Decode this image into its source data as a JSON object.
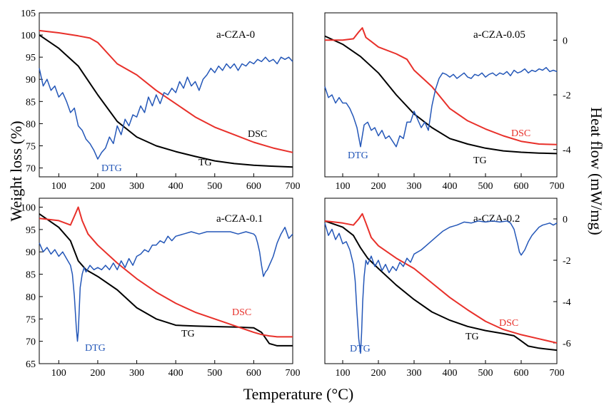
{
  "figure": {
    "xlabel": "Temperature (°C)",
    "ylabel_left": "Weight loss (%)",
    "ylabel_right": "Heat flow (mW/mg)"
  },
  "chart_data": [
    {
      "type": "line",
      "title": "a-CZA-0",
      "xlim": [
        50,
        700
      ],
      "ylim_left": [
        68,
        105
      ],
      "ylim_right": [
        -5,
        1
      ],
      "xticks": [
        100,
        200,
        300,
        400,
        500,
        600,
        700
      ],
      "yticks_left": [
        70,
        75,
        80,
        85,
        90,
        95,
        100,
        105
      ],
      "yticks_right": [],
      "series": [
        {
          "name": "TG",
          "color": "#000000",
          "x": [
            50,
            100,
            150,
            200,
            250,
            300,
            350,
            400,
            450,
            500,
            550,
            600,
            650,
            700
          ],
          "y": [
            100.0,
            97.0,
            93.0,
            86.5,
            80.5,
            77.0,
            75.0,
            73.7,
            72.6,
            71.6,
            71.0,
            70.6,
            70.4,
            70.2
          ]
        },
        {
          "name": "DSC",
          "color": "#e8302a",
          "x": [
            50,
            100,
            150,
            180,
            200,
            250,
            300,
            350,
            400,
            450,
            500,
            550,
            600,
            650,
            700
          ],
          "y": [
            101.0,
            100.5,
            99.8,
            99.3,
            98.3,
            93.5,
            91.0,
            87.5,
            84.5,
            81.5,
            79.2,
            77.5,
            75.8,
            74.5,
            73.5
          ]
        },
        {
          "name": "DTG",
          "color": "#2457b8",
          "x": [
            50,
            60,
            70,
            80,
            90,
            100,
            110,
            120,
            130,
            140,
            150,
            160,
            170,
            180,
            190,
            200,
            210,
            220,
            230,
            240,
            250,
            260,
            270,
            280,
            290,
            300,
            310,
            320,
            330,
            340,
            350,
            360,
            370,
            380,
            390,
            400,
            410,
            420,
            430,
            440,
            450,
            460,
            470,
            480,
            490,
            500,
            510,
            520,
            530,
            540,
            550,
            560,
            570,
            580,
            590,
            600,
            610,
            620,
            630,
            640,
            650,
            660,
            670,
            680,
            690,
            700
          ],
          "y": [
            92.5,
            88.5,
            90.0,
            87.5,
            88.5,
            86.0,
            87.0,
            85.0,
            82.5,
            83.5,
            79.5,
            78.5,
            76.5,
            75.5,
            74.0,
            72.0,
            73.5,
            74.5,
            77.0,
            75.5,
            79.5,
            77.5,
            81.0,
            79.5,
            82.0,
            81.5,
            84.0,
            82.5,
            86.0,
            84.0,
            86.5,
            84.5,
            87.0,
            86.5,
            88.0,
            87.0,
            89.5,
            88.0,
            90.5,
            88.5,
            89.5,
            87.5,
            90.0,
            91.0,
            92.5,
            91.5,
            93.0,
            92.0,
            93.5,
            92.5,
            93.5,
            92.0,
            93.5,
            93.0,
            94.0,
            93.5,
            94.5,
            94.0,
            95.0,
            94.0,
            94.5,
            93.5,
            95.0,
            94.5,
            95.0,
            94.0
          ]
        }
      ],
      "labels": {
        "tg": "TG",
        "dsc": "DSC",
        "dtg": "DTG"
      }
    },
    {
      "type": "line",
      "title": "a-CZA-0.05",
      "xlim": [
        50,
        700
      ],
      "ylim_left": [
        68,
        105
      ],
      "ylim_right": [
        -5,
        1
      ],
      "xticks": [
        100,
        200,
        300,
        400,
        500,
        600,
        700
      ],
      "yticks_left": [],
      "yticks_right": [
        0,
        -2,
        -4
      ],
      "series": [
        {
          "name": "TG",
          "color": "#000000",
          "x": [
            50,
            100,
            150,
            200,
            250,
            300,
            350,
            400,
            450,
            500,
            550,
            600,
            650,
            700
          ],
          "y": [
            0.15,
            -0.15,
            -0.6,
            -1.2,
            -2.0,
            -2.7,
            -3.2,
            -3.6,
            -3.8,
            -3.95,
            -4.05,
            -4.1,
            -4.13,
            -4.15
          ]
        },
        {
          "name": "DSC",
          "color": "#e8302a",
          "x": [
            50,
            100,
            130,
            145,
            155,
            165,
            180,
            200,
            250,
            280,
            300,
            350,
            400,
            450,
            500,
            550,
            600,
            650,
            700
          ],
          "y": [
            0.0,
            0.0,
            0.05,
            0.3,
            0.45,
            0.1,
            -0.05,
            -0.25,
            -0.5,
            -0.7,
            -1.1,
            -1.7,
            -2.5,
            -2.95,
            -3.25,
            -3.5,
            -3.7,
            -3.8,
            -3.82
          ]
        },
        {
          "name": "DTG",
          "color": "#2457b8",
          "x": [
            50,
            60,
            70,
            80,
            90,
            100,
            110,
            120,
            130,
            140,
            150,
            160,
            170,
            180,
            190,
            200,
            210,
            220,
            230,
            240,
            250,
            260,
            270,
            280,
            290,
            300,
            310,
            320,
            330,
            340,
            350,
            360,
            370,
            380,
            390,
            400,
            410,
            420,
            430,
            440,
            450,
            460,
            470,
            480,
            490,
            500,
            510,
            520,
            530,
            540,
            550,
            560,
            570,
            580,
            590,
            600,
            610,
            620,
            630,
            640,
            650,
            660,
            670,
            680,
            690,
            700
          ],
          "y": [
            -1.7,
            -2.1,
            -2.0,
            -2.3,
            -2.1,
            -2.3,
            -2.3,
            -2.5,
            -2.8,
            -3.2,
            -3.9,
            -3.1,
            -3.0,
            -3.3,
            -3.2,
            -3.5,
            -3.3,
            -3.6,
            -3.5,
            -3.7,
            -3.9,
            -3.5,
            -3.6,
            -3.0,
            -3.0,
            -2.6,
            -2.9,
            -3.2,
            -3.0,
            -3.3,
            -2.4,
            -1.8,
            -1.4,
            -1.2,
            -1.25,
            -1.35,
            -1.25,
            -1.4,
            -1.3,
            -1.2,
            -1.35,
            -1.4,
            -1.25,
            -1.3,
            -1.2,
            -1.35,
            -1.25,
            -1.2,
            -1.3,
            -1.2,
            -1.25,
            -1.15,
            -1.3,
            -1.1,
            -1.2,
            -1.15,
            -1.05,
            -1.2,
            -1.1,
            -1.15,
            -1.05,
            -1.1,
            -1.0,
            -1.15,
            -1.1,
            -1.15
          ]
        }
      ],
      "labels": {
        "tg": "TG",
        "dsc": "DSC",
        "dtg": "DTG"
      }
    },
    {
      "type": "line",
      "title": "a-CZA-0.1",
      "xlim": [
        50,
        700
      ],
      "ylim_left": [
        65,
        102
      ],
      "ylim_right": [
        -7,
        1
      ],
      "xticks": [
        100,
        200,
        300,
        400,
        500,
        600,
        700
      ],
      "yticks_left": [
        65,
        70,
        75,
        80,
        85,
        90,
        95,
        100
      ],
      "yticks_right": [],
      "series": [
        {
          "name": "TG",
          "color": "#000000",
          "x": [
            50,
            100,
            130,
            150,
            170,
            200,
            250,
            300,
            350,
            400,
            450,
            500,
            550,
            600,
            620,
            640,
            660,
            700
          ],
          "y": [
            98.5,
            95.5,
            92.5,
            88.0,
            86.0,
            84.5,
            81.5,
            77.5,
            75.0,
            73.6,
            73.4,
            73.3,
            73.2,
            73.0,
            72.0,
            69.5,
            69.0,
            69.0
          ]
        },
        {
          "name": "DSC",
          "color": "#e8302a",
          "x": [
            50,
            100,
            130,
            140,
            150,
            160,
            175,
            200,
            250,
            300,
            350,
            400,
            450,
            500,
            550,
            600,
            620,
            640,
            660,
            700
          ],
          "y": [
            97.5,
            97.0,
            96.0,
            98.0,
            100.0,
            97.0,
            94.0,
            91.5,
            87.5,
            84.0,
            81.0,
            78.5,
            76.5,
            75.0,
            73.5,
            72.0,
            71.5,
            71.2,
            71.0,
            71.0
          ]
        },
        {
          "name": "DTG",
          "color": "#2457b8",
          "x": [
            50,
            60,
            70,
            80,
            90,
            100,
            110,
            120,
            130,
            135,
            140,
            145,
            148,
            150,
            152,
            155,
            160,
            165,
            170,
            180,
            190,
            200,
            210,
            220,
            230,
            240,
            250,
            260,
            270,
            280,
            290,
            300,
            310,
            320,
            330,
            340,
            350,
            360,
            370,
            380,
            390,
            400,
            420,
            440,
            460,
            480,
            500,
            520,
            540,
            560,
            580,
            600,
            605,
            610,
            615,
            620,
            625,
            630,
            635,
            640,
            645,
            650,
            660,
            670,
            680,
            690,
            700
          ],
          "y": [
            92.0,
            90.0,
            91.0,
            89.5,
            90.5,
            89.0,
            90.0,
            88.5,
            87.0,
            85.0,
            80.0,
            73.0,
            70.0,
            72.0,
            76.0,
            82.0,
            85.0,
            86.5,
            85.5,
            87.0,
            86.0,
            86.5,
            86.0,
            87.0,
            86.0,
            87.5,
            86.0,
            88.0,
            86.5,
            88.5,
            87.0,
            89.0,
            89.5,
            90.5,
            90.0,
            91.5,
            91.5,
            92.5,
            92.0,
            93.5,
            92.5,
            93.5,
            94.0,
            94.5,
            94.0,
            94.5,
            94.5,
            94.5,
            94.5,
            94.0,
            94.5,
            94.0,
            93.5,
            92.0,
            90.0,
            87.0,
            84.5,
            85.5,
            86.0,
            87.0,
            88.0,
            89.0,
            92.0,
            94.0,
            95.5,
            93.0,
            94.0
          ]
        }
      ],
      "labels": {
        "tg": "TG",
        "dsc": "DSC",
        "dtg": "DTG"
      }
    },
    {
      "type": "line",
      "title": "a-CZA-0.2",
      "xlim": [
        50,
        700
      ],
      "ylim_left": [
        65,
        102
      ],
      "ylim_right": [
        -7,
        1
      ],
      "xticks": [
        100,
        200,
        300,
        400,
        500,
        600,
        700
      ],
      "yticks_left": [],
      "yticks_right": [
        0,
        -2,
        -4,
        -6
      ],
      "series": [
        {
          "name": "TG",
          "color": "#000000",
          "x": [
            50,
            100,
            130,
            150,
            170,
            200,
            250,
            300,
            350,
            400,
            450,
            500,
            550,
            580,
            600,
            620,
            650,
            700
          ],
          "y": [
            -0.1,
            -0.4,
            -0.8,
            -1.4,
            -1.9,
            -2.4,
            -3.2,
            -3.9,
            -4.5,
            -4.9,
            -5.2,
            -5.4,
            -5.55,
            -5.65,
            -5.9,
            -6.15,
            -6.25,
            -6.35
          ]
        },
        {
          "name": "DSC",
          "color": "#e8302a",
          "x": [
            50,
            100,
            130,
            145,
            155,
            165,
            180,
            200,
            250,
            300,
            350,
            400,
            450,
            500,
            550,
            600,
            650,
            700
          ],
          "y": [
            -0.1,
            -0.2,
            -0.3,
            0.0,
            0.25,
            -0.2,
            -0.9,
            -1.3,
            -1.9,
            -2.4,
            -3.1,
            -3.8,
            -4.4,
            -4.95,
            -5.35,
            -5.6,
            -5.8,
            -6.0
          ]
        },
        {
          "name": "DTG",
          "color": "#2457b8",
          "x": [
            50,
            60,
            70,
            80,
            90,
            100,
            110,
            120,
            130,
            135,
            140,
            145,
            150,
            153,
            156,
            160,
            165,
            170,
            180,
            190,
            200,
            210,
            220,
            230,
            240,
            250,
            260,
            270,
            280,
            290,
            300,
            320,
            340,
            360,
            380,
            400,
            420,
            440,
            460,
            480,
            500,
            520,
            540,
            560,
            570,
            580,
            590,
            595,
            600,
            610,
            620,
            630,
            640,
            650,
            660,
            670,
            680,
            690,
            700
          ],
          "y": [
            -0.2,
            -0.8,
            -0.5,
            -1.0,
            -0.7,
            -1.2,
            -1.1,
            -1.5,
            -2.2,
            -3.0,
            -4.5,
            -5.8,
            -6.5,
            -5.5,
            -4.0,
            -2.8,
            -2.0,
            -2.2,
            -1.8,
            -2.3,
            -2.0,
            -2.5,
            -2.2,
            -2.6,
            -2.3,
            -2.5,
            -2.1,
            -2.3,
            -1.9,
            -2.1,
            -1.7,
            -1.5,
            -1.2,
            -0.9,
            -0.6,
            -0.4,
            -0.3,
            -0.15,
            -0.2,
            -0.1,
            -0.15,
            -0.1,
            -0.15,
            -0.1,
            -0.2,
            -0.5,
            -1.2,
            -1.6,
            -1.75,
            -1.5,
            -1.1,
            -0.8,
            -0.6,
            -0.4,
            -0.3,
            -0.25,
            -0.2,
            -0.3,
            -0.2
          ]
        }
      ],
      "labels": {
        "tg": "TG",
        "dsc": "DSC",
        "dtg": "DTG"
      }
    }
  ]
}
